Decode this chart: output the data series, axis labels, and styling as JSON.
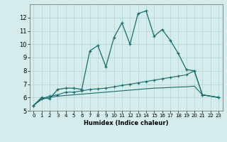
{
  "title": "",
  "xlabel": "Humidex (Indice chaleur)",
  "xlim": [
    -0.5,
    23.5
  ],
  "ylim": [
    5,
    13
  ],
  "yticks": [
    5,
    6,
    7,
    8,
    9,
    10,
    11,
    12
  ],
  "xticks": [
    0,
    1,
    2,
    3,
    4,
    5,
    6,
    7,
    8,
    9,
    10,
    11,
    12,
    13,
    14,
    15,
    16,
    17,
    18,
    19,
    20,
    21,
    22,
    23
  ],
  "bg_color": "#d4ecec",
  "grid_color": "#aed4d4",
  "line_color": "#1a6b6b",
  "line1_x": [
    0,
    1,
    2,
    3,
    4,
    5,
    6,
    7,
    8,
    9,
    10,
    11,
    12,
    13,
    14,
    15,
    16,
    17,
    18,
    19,
    20,
    21,
    23
  ],
  "line1_y": [
    5.4,
    6.0,
    5.9,
    6.6,
    6.7,
    6.7,
    6.6,
    9.5,
    9.9,
    8.3,
    10.5,
    11.6,
    10.0,
    12.3,
    12.5,
    10.6,
    11.1,
    10.3,
    9.3,
    8.1,
    8.0,
    6.2,
    6.0
  ],
  "line2_x": [
    0,
    1,
    2,
    3,
    4,
    5,
    6,
    7,
    8,
    9,
    10,
    11,
    12,
    13,
    14,
    15,
    16,
    17,
    18,
    19,
    20,
    21,
    23
  ],
  "line2_y": [
    5.4,
    5.9,
    6.1,
    6.2,
    6.4,
    6.4,
    6.5,
    6.6,
    6.65,
    6.7,
    6.8,
    6.9,
    7.0,
    7.1,
    7.2,
    7.3,
    7.4,
    7.5,
    7.6,
    7.7,
    8.0,
    6.2,
    6.0
  ],
  "line3_x": [
    0,
    1,
    2,
    3,
    4,
    5,
    6,
    7,
    8,
    9,
    10,
    11,
    12,
    13,
    14,
    15,
    16,
    17,
    18,
    19,
    20,
    21,
    23
  ],
  "line3_y": [
    5.4,
    5.85,
    6.0,
    6.1,
    6.15,
    6.2,
    6.25,
    6.3,
    6.35,
    6.4,
    6.45,
    6.5,
    6.55,
    6.6,
    6.65,
    6.7,
    6.72,
    6.75,
    6.78,
    6.8,
    6.85,
    6.2,
    6.0
  ]
}
